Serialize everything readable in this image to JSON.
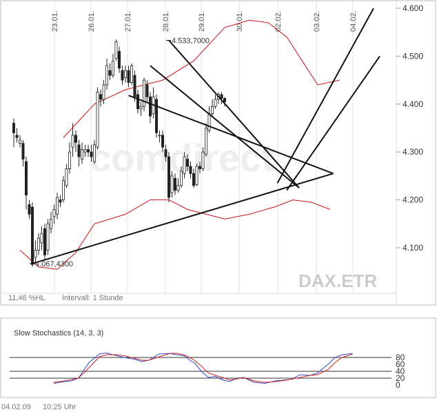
{
  "watermark": "comdirect",
  "chart_data": [
    {
      "type": "candlestick",
      "symbol": "DAX.ETR",
      "info_left": "11,46 %HL",
      "interval": "Intervall: 1 Stunde",
      "date_labels": [
        "23.01.",
        "26.01.",
        "27.01.",
        "28.01.",
        "29.01.",
        "30.01.",
        "02.02.",
        "03.02.",
        "04.02."
      ],
      "y_ticks": [
        "4.600",
        "4.500",
        "4.400",
        "4.300",
        "4.200",
        "4.100"
      ],
      "ylim": [
        4030,
        4615
      ],
      "candles": [
        [
          4360,
          4340,
          4370,
          4310
        ],
        [
          4335,
          4330,
          4350,
          4320
        ],
        [
          4318,
          4325,
          4335,
          4310
        ],
        [
          4318,
          4285,
          4325,
          4270
        ],
        [
          4280,
          4210,
          4290,
          4180
        ],
        [
          4190,
          4170,
          4200,
          4160
        ],
        [
          4185,
          4065,
          4195,
          4060
        ],
        [
          4080,
          4095,
          4115,
          4070
        ],
        [
          4095,
          4120,
          4130,
          4085
        ],
        [
          4110,
          4130,
          4145,
          4095
        ],
        [
          4140,
          4085,
          4150,
          4075
        ],
        [
          4095,
          4150,
          4160,
          4085
        ],
        [
          4140,
          4160,
          4175,
          4130
        ],
        [
          4165,
          4180,
          4190,
          4150
        ],
        [
          4170,
          4205,
          4215,
          4160
        ],
        [
          4200,
          4195,
          4210,
          4185
        ],
        [
          4200,
          4240,
          4250,
          4195
        ],
        [
          4230,
          4265,
          4275,
          4225
        ],
        [
          4265,
          4300,
          4320,
          4255
        ],
        [
          4310,
          4335,
          4360,
          4290
        ],
        [
          4335,
          4320,
          4345,
          4300
        ],
        [
          4315,
          4290,
          4325,
          4270
        ],
        [
          4285,
          4305,
          4320,
          4275
        ],
        [
          4300,
          4305,
          4315,
          4290
        ],
        [
          4305,
          4300,
          4315,
          4290
        ],
        [
          4300,
          4290,
          4315,
          4280
        ],
        [
          4280,
          4315,
          4325,
          4275
        ],
        [
          4310,
          4425,
          4435,
          4305
        ],
        [
          4420,
          4410,
          4430,
          4395
        ],
        [
          4410,
          4440,
          4450,
          4400
        ],
        [
          4440,
          4480,
          4495,
          4430
        ],
        [
          4470,
          4460,
          4485,
          4450
        ],
        [
          4460,
          4490,
          4505,
          4455
        ],
        [
          4495,
          4530,
          4535,
          4490
        ],
        [
          4510,
          4475,
          4520,
          4465
        ],
        [
          4470,
          4450,
          4480,
          4440
        ],
        [
          4455,
          4470,
          4480,
          4445
        ],
        [
          4470,
          4445,
          4480,
          4435
        ],
        [
          4445,
          4480,
          4485,
          4440
        ],
        [
          4460,
          4415,
          4470,
          4405
        ],
        [
          4420,
          4390,
          4430,
          4380
        ],
        [
          4390,
          4395,
          4405,
          4375
        ],
        [
          4395,
          4450,
          4455,
          4385
        ],
        [
          4440,
          4415,
          4450,
          4405
        ],
        [
          4415,
          4375,
          4425,
          4360
        ],
        [
          4380,
          4415,
          4435,
          4370
        ],
        [
          4410,
          4340,
          4420,
          4330
        ],
        [
          4335,
          4335,
          4345,
          4320
        ],
        [
          4335,
          4310,
          4345,
          4300
        ],
        [
          4305,
          4290,
          4315,
          4280
        ],
        [
          4290,
          4205,
          4300,
          4195
        ],
        [
          4215,
          4250,
          4260,
          4205
        ],
        [
          4245,
          4220,
          4255,
          4210
        ],
        [
          4220,
          4230,
          4245,
          4215
        ],
        [
          4230,
          4260,
          4270,
          4225
        ],
        [
          4255,
          4290,
          4300,
          4245
        ],
        [
          4285,
          4270,
          4295,
          4260
        ],
        [
          4270,
          4255,
          4280,
          4245
        ],
        [
          4255,
          4230,
          4265,
          4225
        ],
        [
          4232,
          4270,
          4275,
          4228
        ],
        [
          4270,
          4265,
          4280,
          4255
        ],
        [
          4265,
          4300,
          4310,
          4260
        ],
        [
          4295,
          4350,
          4360,
          4290
        ],
        [
          4345,
          4380,
          4395,
          4340
        ],
        [
          4380,
          4395,
          4410,
          4375
        ],
        [
          4395,
          4410,
          4420,
          4390
        ],
        [
          4410,
          4420,
          4425,
          4400
        ],
        [
          4420,
          4412,
          4425,
          4400
        ],
        [
          4412,
          4405,
          4415,
          4395
        ]
      ],
      "bollinger_upper": [
        [
          16,
          4330
        ],
        [
          26,
          4400
        ],
        [
          36,
          4430
        ],
        [
          48,
          4450
        ],
        [
          58,
          4490
        ],
        [
          68,
          4560
        ],
        [
          76,
          4575
        ],
        [
          82,
          4570
        ],
        [
          88,
          4540
        ],
        [
          94,
          4480
        ],
        [
          98,
          4440
        ],
        [
          105,
          4450
        ]
      ],
      "bollinger_lower": [
        [
          2,
          4095
        ],
        [
          8,
          4060
        ],
        [
          14,
          4055
        ],
        [
          20,
          4090
        ],
        [
          26,
          4150
        ],
        [
          36,
          4170
        ],
        [
          44,
          4200
        ],
        [
          50,
          4200
        ],
        [
          56,
          4180
        ],
        [
          62,
          4170
        ],
        [
          68,
          4160
        ],
        [
          76,
          4170
        ],
        [
          84,
          4185
        ],
        [
          90,
          4200
        ],
        [
          96,
          4195
        ],
        [
          102,
          4180
        ]
      ],
      "trendlines": [
        {
          "from": [
            6,
            4067
          ],
          "to": [
            103,
            4255
          ]
        },
        {
          "from": [
            37,
            4418
          ],
          "to": [
            103,
            4255
          ]
        },
        {
          "from": [
            44,
            4480
          ],
          "to": [
            92,
            4225
          ]
        },
        {
          "from": [
            50,
            4533
          ],
          "to": [
            92,
            4225
          ]
        },
        {
          "from": [
            85,
            4235
          ],
          "to": [
            116,
            4600
          ]
        },
        {
          "from": [
            88,
            4220
          ],
          "to": [
            118,
            4500
          ]
        }
      ],
      "annotations": [
        {
          "text": "4.533,7000",
          "x": 50,
          "y": 4533
        },
        {
          "text": "4.067,4300",
          "x": 6,
          "y": 4067
        }
      ]
    },
    {
      "type": "line",
      "title": "Slow Stochastics (14, 3, 3)",
      "y_ticks": [
        "80",
        "60",
        "40",
        "20",
        "0"
      ],
      "ylim": [
        0,
        100
      ],
      "series": [
        {
          "color": "#3344cc",
          "points": [
            [
              0,
              5
            ],
            [
              6,
              10
            ],
            [
              10,
              12
            ],
            [
              14,
              20
            ],
            [
              20,
              65
            ],
            [
              26,
              90
            ],
            [
              30,
              93
            ],
            [
              36,
              85
            ],
            [
              40,
              80
            ],
            [
              46,
              75
            ],
            [
              50,
              68
            ],
            [
              54,
              72
            ],
            [
              60,
              90
            ],
            [
              66,
              92
            ],
            [
              70,
              88
            ],
            [
              74,
              85
            ],
            [
              78,
              70
            ],
            [
              80,
              65
            ],
            [
              84,
              40
            ],
            [
              88,
              22
            ],
            [
              92,
              25
            ],
            [
              96,
              15
            ],
            [
              100,
              10
            ],
            [
              104,
              20
            ],
            [
              108,
              22
            ],
            [
              114,
              8
            ],
            [
              120,
              5
            ],
            [
              126,
              12
            ],
            [
              132,
              15
            ],
            [
              136,
              18
            ],
            [
              140,
              30
            ],
            [
              146,
              28
            ],
            [
              150,
              35
            ],
            [
              156,
              60
            ],
            [
              160,
              80
            ],
            [
              164,
              88
            ],
            [
              170,
              92
            ]
          ]
        },
        {
          "color": "#cc2222",
          "points": [
            [
              0,
              8
            ],
            [
              6,
              12
            ],
            [
              10,
              16
            ],
            [
              14,
              20
            ],
            [
              20,
              50
            ],
            [
              26,
              82
            ],
            [
              30,
              88
            ],
            [
              36,
              88
            ],
            [
              40,
              85
            ],
            [
              46,
              78
            ],
            [
              50,
              72
            ],
            [
              54,
              72
            ],
            [
              60,
              82
            ],
            [
              66,
              92
            ],
            [
              70,
              92
            ],
            [
              74,
              88
            ],
            [
              78,
              78
            ],
            [
              80,
              72
            ],
            [
              84,
              55
            ],
            [
              88,
              35
            ],
            [
              92,
              28
            ],
            [
              96,
              22
            ],
            [
              100,
              15
            ],
            [
              104,
              18
            ],
            [
              108,
              22
            ],
            [
              114,
              12
            ],
            [
              120,
              8
            ],
            [
              126,
              10
            ],
            [
              132,
              14
            ],
            [
              136,
              18
            ],
            [
              140,
              22
            ],
            [
              146,
              28
            ],
            [
              150,
              30
            ],
            [
              156,
              45
            ],
            [
              160,
              65
            ],
            [
              164,
              80
            ],
            [
              170,
              90
            ]
          ]
        }
      ]
    }
  ],
  "footer": {
    "date": "04.02.09",
    "time": "10:25 Uhr"
  }
}
